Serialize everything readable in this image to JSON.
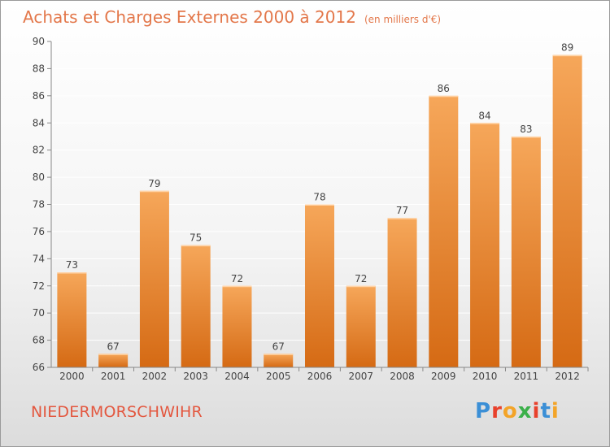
{
  "header": {
    "title": "Achats et Charges Externes 2000 à 2012",
    "subtitle": "(en milliers d'€)"
  },
  "footer": {
    "place": "NIEDERMORSCHWIHR",
    "logo_text": "Proxiti",
    "logo_colors": [
      "#3b8fd6",
      "#e8412c",
      "#f3a428",
      "#3bb04a",
      "#e8412c",
      "#3b8fd6",
      "#f3a428"
    ]
  },
  "colors": {
    "bar_top": "#f6a75a",
    "bar_bottom": "#d56a14",
    "axis": "#888888",
    "grid": "#ffffff",
    "text": "#444444"
  },
  "chart_data": {
    "type": "bar",
    "title": "Achats et Charges Externes 2000 à 2012",
    "subtitle": "(en milliers d'€)",
    "categories": [
      "2000",
      "2001",
      "2002",
      "2003",
      "2004",
      "2005",
      "2006",
      "2007",
      "2008",
      "2009",
      "2010",
      "2011",
      "2012"
    ],
    "values": [
      73,
      67,
      79,
      75,
      72,
      67,
      78,
      72,
      77,
      86,
      84,
      83,
      89
    ],
    "data_labels": [
      "73",
      "67",
      "79",
      "75",
      "72",
      "67",
      "78",
      "72",
      "77",
      "86",
      "84",
      "83",
      "89"
    ],
    "ylim": [
      66,
      90
    ],
    "yticks": [
      66,
      68,
      70,
      72,
      74,
      76,
      78,
      80,
      82,
      84,
      86,
      88,
      90
    ],
    "ytick_labels": [
      "66",
      "68",
      "70",
      "72",
      "74",
      "76",
      "78",
      "80",
      "82",
      "84",
      "86",
      "88",
      "90"
    ],
    "grid": true,
    "legend": "none"
  }
}
